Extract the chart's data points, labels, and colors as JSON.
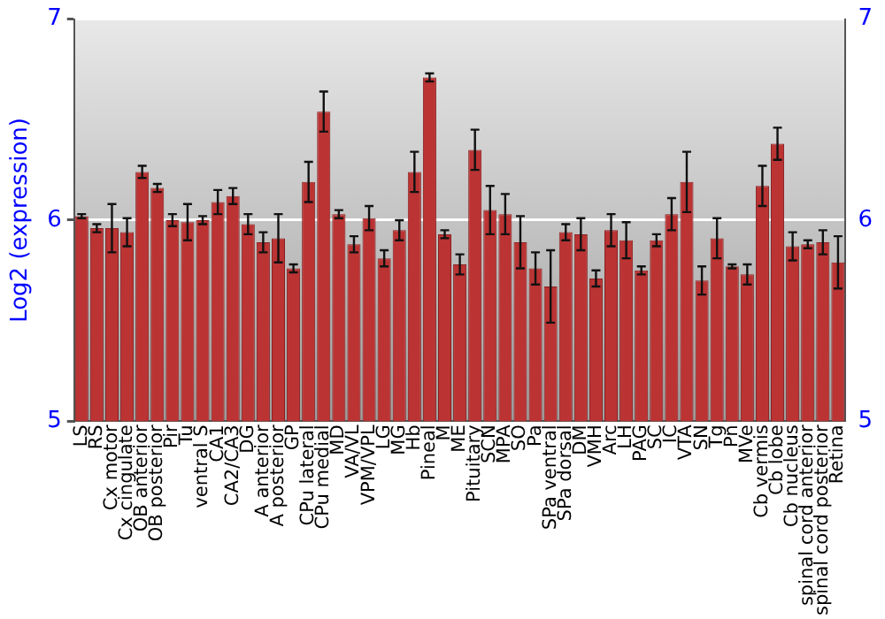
{
  "chart_data": {
    "type": "bar",
    "ylabel": "Log2 (expression)",
    "categories": [
      "LS",
      "RS",
      "Cx motor",
      "Cx cingulate",
      "OB anterior",
      "OB posterior",
      "Pir",
      "Tu",
      "ventral S",
      "CA1",
      "CA2/CA3",
      "DG",
      "A anterior",
      "A posterior",
      "GP",
      "CPu lateral",
      "CPu medial",
      "MD",
      "VA/VL",
      "VPM/VPL",
      "LG",
      "MG",
      "Hb",
      "Pineal",
      "M",
      "ME",
      "Pituitary",
      "SCN",
      "MPA",
      "SO",
      "Pa",
      "SPa ventral",
      "SPa dorsal",
      "DM",
      "VMH",
      "Arc",
      "LH",
      "PAG",
      "SC",
      "IC",
      "VTA",
      "SN",
      "Tg",
      "Pn",
      "MVe",
      "Cb vermis",
      "Cb lobe",
      "Cb nucleus",
      "spinal cord anterior",
      "spinal cord posterior",
      "Retina"
    ],
    "values": [
      6.02,
      5.96,
      5.96,
      5.94,
      6.24,
      6.16,
      6.0,
      5.99,
      6.0,
      6.09,
      6.12,
      5.98,
      5.89,
      5.91,
      5.76,
      6.19,
      6.54,
      6.03,
      5.88,
      6.01,
      5.81,
      5.95,
      6.24,
      6.71,
      5.93,
      5.78,
      6.35,
      6.05,
      6.03,
      5.89,
      5.76,
      5.67,
      5.94,
      5.93,
      5.71,
      5.95,
      5.9,
      5.75,
      5.9,
      6.03,
      6.19,
      5.7,
      5.91,
      5.77,
      5.73,
      6.17,
      6.38,
      5.87,
      5.88,
      5.89,
      5.79
    ],
    "errors": [
      0.01,
      0.02,
      0.12,
      0.07,
      0.03,
      0.02,
      0.03,
      0.09,
      0.02,
      0.06,
      0.04,
      0.05,
      0.05,
      0.12,
      0.02,
      0.1,
      0.1,
      0.02,
      0.04,
      0.06,
      0.04,
      0.05,
      0.1,
      0.02,
      0.02,
      0.05,
      0.1,
      0.12,
      0.1,
      0.13,
      0.08,
      0.18,
      0.04,
      0.08,
      0.04,
      0.08,
      0.09,
      0.02,
      0.03,
      0.08,
      0.15,
      0.07,
      0.1,
      0.01,
      0.05,
      0.1,
      0.08,
      0.07,
      0.02,
      0.06,
      0.13
    ],
    "color": "#bb3333",
    "ylim": [
      5,
      7
    ],
    "yticks": [
      5,
      6,
      7
    ],
    "y2lim": [
      5,
      7
    ],
    "y2ticks": [
      5,
      6,
      7
    ],
    "grid": "y",
    "legend": false
  }
}
